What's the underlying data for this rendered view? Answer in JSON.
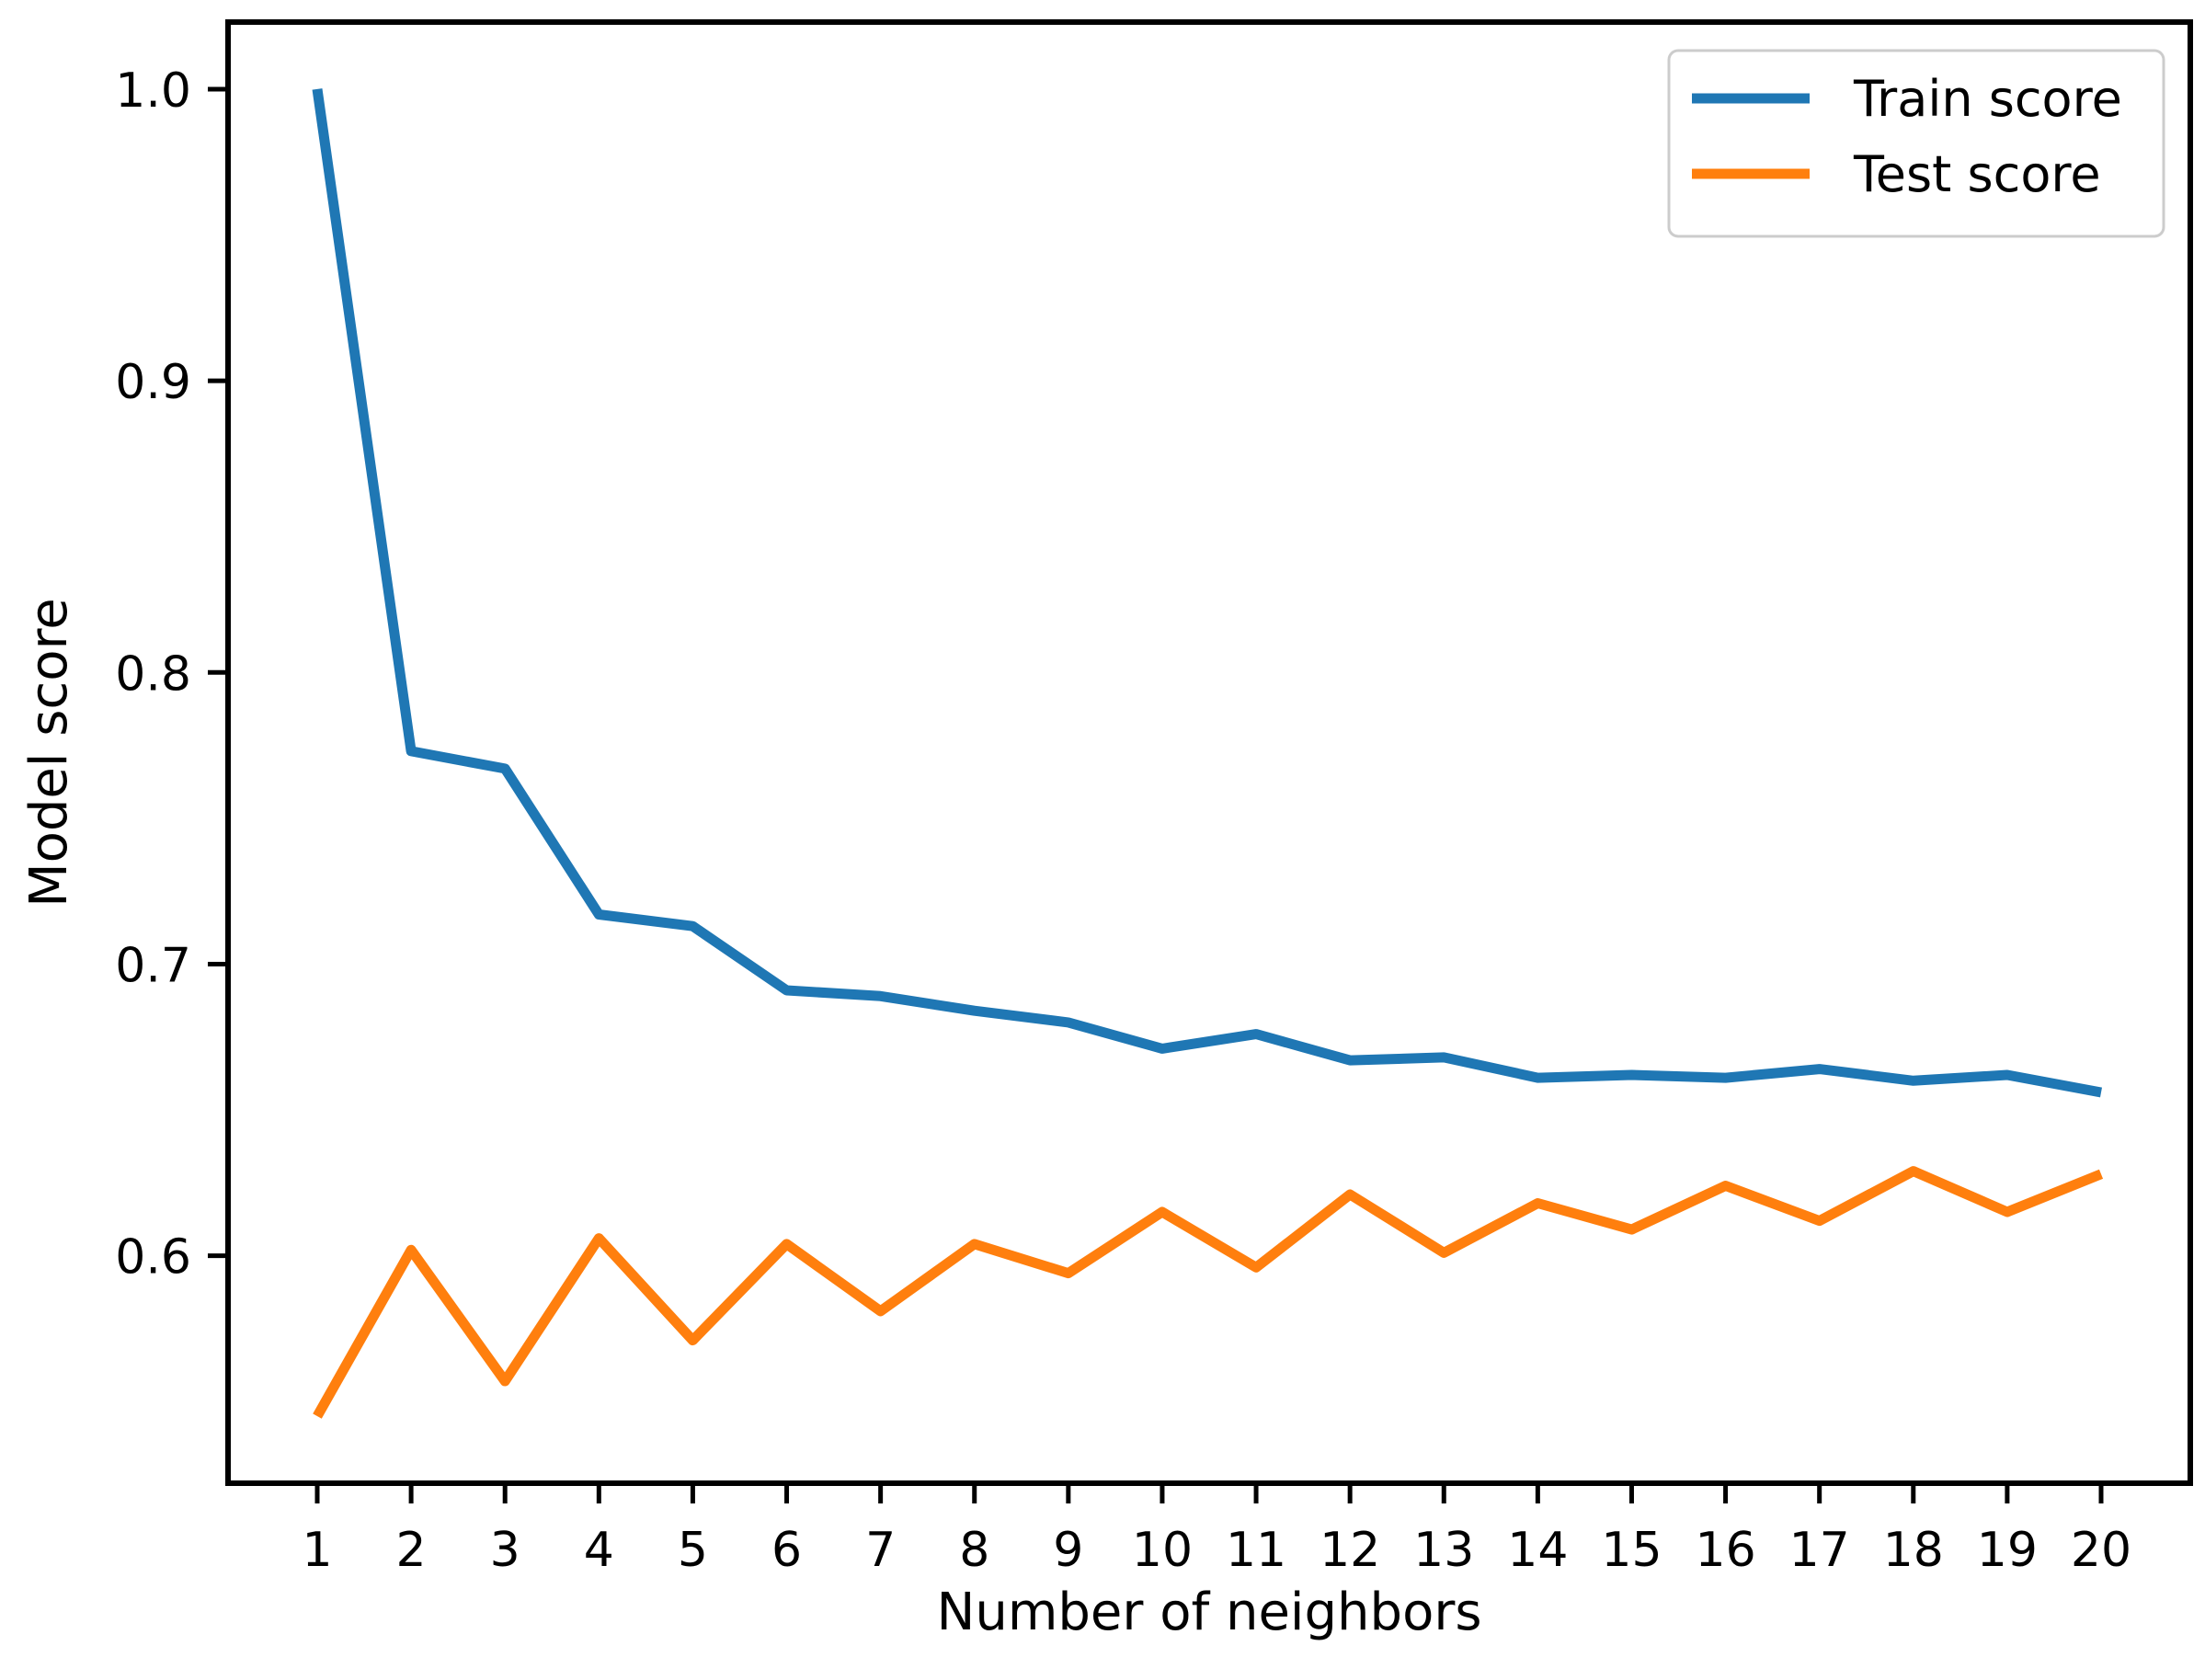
{
  "figure": {
    "background": "#ffffff",
    "frame_color": "#000000"
  },
  "chart_data": {
    "type": "line",
    "title": "",
    "xlabel": "Number of neighbors",
    "ylabel": "Model score",
    "x": [
      1,
      2,
      3,
      4,
      5,
      6,
      7,
      8,
      9,
      10,
      11,
      12,
      13,
      14,
      15,
      16,
      17,
      18,
      19,
      20
    ],
    "series": [
      {
        "name": "Train score",
        "color": "#1f77b4",
        "values": [
          1.0,
          0.773,
          0.767,
          0.717,
          0.713,
          0.691,
          0.689,
          0.684,
          0.68,
          0.671,
          0.676,
          0.667,
          0.668,
          0.661,
          0.662,
          0.661,
          0.664,
          0.66,
          0.662,
          0.656
        ]
      },
      {
        "name": "Test score",
        "color": "#ff7f0e",
        "values": [
          0.545,
          0.602,
          0.557,
          0.606,
          0.571,
          0.604,
          0.581,
          0.604,
          0.594,
          0.615,
          0.596,
          0.621,
          0.601,
          0.618,
          0.609,
          0.624,
          0.612,
          0.629,
          0.615,
          0.628
        ]
      }
    ],
    "xticks": [
      1,
      2,
      3,
      4,
      5,
      6,
      7,
      8,
      9,
      10,
      11,
      12,
      13,
      14,
      15,
      16,
      17,
      18,
      19,
      20
    ],
    "xtick_labels": [
      "1",
      "2",
      "3",
      "4",
      "5",
      "6",
      "7",
      "8",
      "9",
      "10",
      "11",
      "12",
      "13",
      "14",
      "15",
      "16",
      "17",
      "18",
      "19",
      "20"
    ],
    "yticks": [
      0.6,
      0.7,
      0.8,
      0.9,
      1.0
    ],
    "ytick_labels": [
      "0.6",
      "0.7",
      "0.8",
      "0.9",
      "1.0"
    ],
    "xlim": [
      0.05,
      20.95
    ],
    "ylim": [
      0.522,
      1.023
    ],
    "grid": false,
    "legend_position": "upper right"
  }
}
